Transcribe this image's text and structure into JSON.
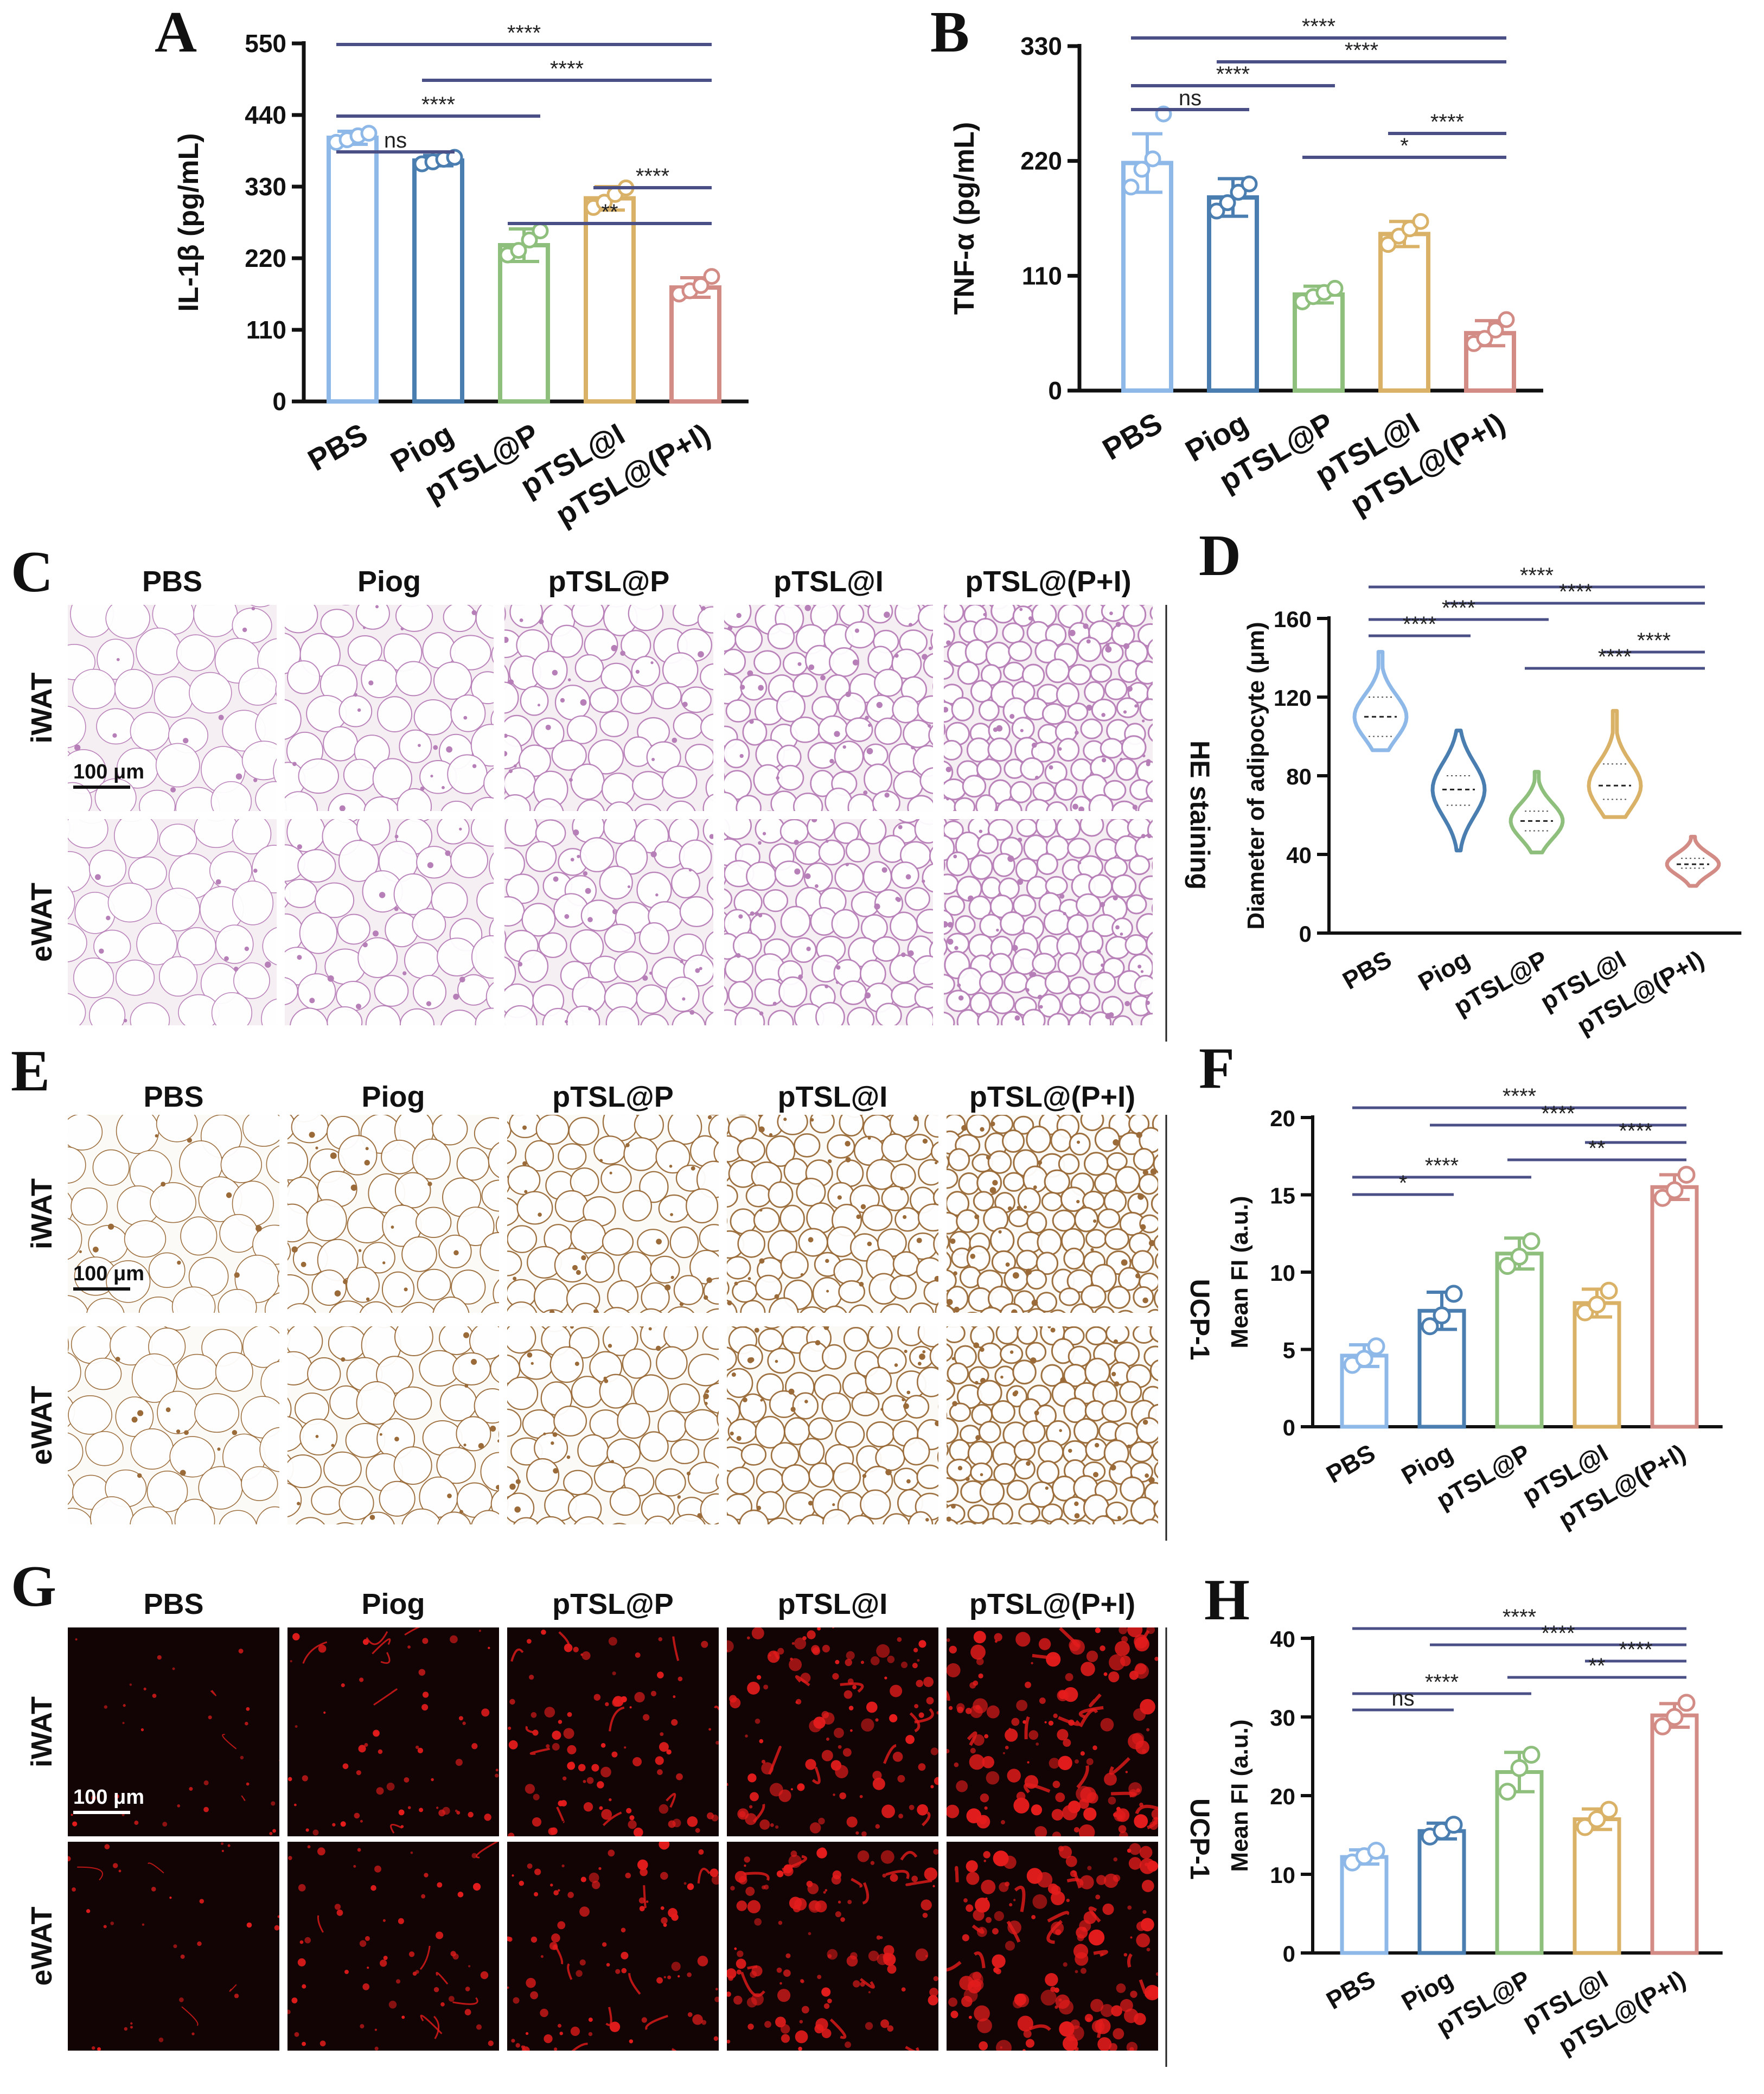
{
  "panel_labels": [
    "A",
    "B",
    "C",
    "D",
    "E",
    "F",
    "G",
    "H"
  ],
  "colors": {
    "PBS": "#8db8e8",
    "Piog": "#4a7eb0",
    "pTSL@P": "#8ebf7c",
    "pTSL@I": "#d9b167",
    "pTSL@(P+I)": "#d38c85",
    "sig_line": "#4a4f86",
    "he_bg": "#f5eef3",
    "he_stain": "#b77fb8",
    "ihc_bg": "#fbfaf7",
    "ihc_stain": "#9a6a38",
    "if_bg": "#120404",
    "if_stain": "#e51c1c"
  },
  "chart_data": [
    {
      "id": "A",
      "type": "bar",
      "categories": [
        "PBS",
        "Piog",
        "pTSL@P",
        "pTSL@I",
        "pTSL@(P+I)"
      ],
      "values": [
        405,
        370,
        240,
        312,
        175
      ],
      "errors": [
        10,
        8,
        25,
        18,
        15
      ],
      "points": [
        [
          398,
          402,
          408,
          412
        ],
        [
          365,
          368,
          372,
          375
        ],
        [
          225,
          232,
          248,
          262
        ],
        [
          298,
          306,
          318,
          328
        ],
        [
          165,
          170,
          178,
          192
        ]
      ],
      "ylabel": "IL-1β (pg/mL)",
      "yticks": [
        "0",
        "110",
        "220",
        "330",
        "440",
        "550"
      ],
      "ylim": [
        0,
        550
      ],
      "significance": [
        {
          "from": 0,
          "to": 4,
          "label": "****"
        },
        {
          "from": 1,
          "to": 4,
          "label": "****"
        },
        {
          "from": 0,
          "to": 2,
          "label": "****"
        },
        {
          "from": 0,
          "to": 1,
          "label": "ns"
        },
        {
          "from": 3,
          "to": 4,
          "label": "****"
        },
        {
          "from": 2,
          "to": 4,
          "label": "**"
        }
      ]
    },
    {
      "id": "B",
      "type": "bar",
      "categories": [
        "PBS",
        "Piog",
        "pTSL@P",
        "pTSL@I",
        "pTSL@(P+I)"
      ],
      "values": [
        218,
        185,
        92,
        150,
        55
      ],
      "errors": [
        28,
        18,
        8,
        12,
        12
      ],
      "points": [
        [
          195,
          212,
          222,
          265
        ],
        [
          172,
          180,
          190,
          198
        ],
        [
          85,
          90,
          94,
          98
        ],
        [
          140,
          148,
          155,
          162
        ],
        [
          45,
          50,
          58,
          68
        ]
      ],
      "ylabel": "TNF-α (pg/mL)",
      "yticks": [
        "0",
        "110",
        "220",
        "330"
      ],
      "ylim": [
        0,
        330
      ],
      "significance": [
        {
          "from": 0,
          "to": 4,
          "label": "****"
        },
        {
          "from": 1,
          "to": 4,
          "label": "****"
        },
        {
          "from": 0,
          "to": 2,
          "label": "****"
        },
        {
          "from": 0,
          "to": 1,
          "label": "ns"
        },
        {
          "from": 3,
          "to": 4,
          "label": "****"
        },
        {
          "from": 2,
          "to": 4,
          "label": "*"
        }
      ]
    },
    {
      "id": "D",
      "type": "violin",
      "categories": [
        "PBS",
        "Piog",
        "pTSL@P",
        "pTSL@I",
        "pTSL@(P+I)"
      ],
      "medians": [
        110,
        73,
        57,
        75,
        35
      ],
      "q1": [
        100,
        65,
        52,
        68,
        33
      ],
      "q3": [
        120,
        80,
        62,
        86,
        38
      ],
      "min": [
        93,
        42,
        41,
        59,
        24
      ],
      "max": [
        143,
        103,
        82,
        113,
        49
      ],
      "ylabel": "Diameter of adipocyte (μm)",
      "yticks": [
        "0",
        "40",
        "80",
        "120",
        "160"
      ],
      "ylim": [
        0,
        160
      ],
      "significance": [
        {
          "from": 0,
          "to": 4,
          "label": "****"
        },
        {
          "from": 1,
          "to": 4,
          "label": "****"
        },
        {
          "from": 0,
          "to": 2,
          "label": "****"
        },
        {
          "from": 0,
          "to": 1,
          "label": "****"
        },
        {
          "from": 3,
          "to": 4,
          "label": "****"
        },
        {
          "from": 2,
          "to": 4,
          "label": "****"
        }
      ]
    },
    {
      "id": "F",
      "type": "bar",
      "categories": [
        "PBS",
        "Piog",
        "pTSL@P",
        "pTSL@I",
        "pTSL@(P+I)"
      ],
      "values": [
        4.6,
        7.5,
        11.2,
        8.0,
        15.5
      ],
      "errors": [
        0.7,
        1.2,
        1.0,
        0.9,
        0.8
      ],
      "points": [
        [
          4.0,
          4.4,
          5.2
        ],
        [
          6.5,
          7.2,
          8.6
        ],
        [
          10.4,
          11.0,
          12.0
        ],
        [
          7.4,
          7.9,
          8.8
        ],
        [
          14.8,
          15.3,
          16.3
        ]
      ],
      "ylabel": "Mean FI (a.u.)",
      "yticks": [
        "0",
        "5",
        "10",
        "15",
        "20"
      ],
      "ylim": [
        0,
        20
      ],
      "significance": [
        {
          "from": 0,
          "to": 4,
          "label": "****"
        },
        {
          "from": 1,
          "to": 4,
          "label": "****"
        },
        {
          "from": 3,
          "to": 4,
          "label": "****"
        },
        {
          "from": 2,
          "to": 4,
          "label": "**"
        },
        {
          "from": 0,
          "to": 2,
          "label": "****"
        },
        {
          "from": 0,
          "to": 1,
          "label": "*"
        }
      ]
    },
    {
      "id": "H",
      "type": "bar",
      "categories": [
        "PBS",
        "Piog",
        "pTSL@P",
        "pTSL@I",
        "pTSL@(P+I)"
      ],
      "values": [
        12.2,
        15.5,
        23.0,
        17.0,
        30.2
      ],
      "errors": [
        0.9,
        1.0,
        2.5,
        1.3,
        1.5
      ],
      "points": [
        [
          11.5,
          12.3,
          13.0
        ],
        [
          14.8,
          15.5,
          16.3
        ],
        [
          20.5,
          23.5,
          25.2
        ],
        [
          16.0,
          17.0,
          18.2
        ],
        [
          28.8,
          30.0,
          31.8
        ]
      ],
      "ylabel": "Mean FI (a.u.)",
      "yticks": [
        "0",
        "10",
        "20",
        "30",
        "40"
      ],
      "ylim": [
        0,
        40
      ],
      "significance": [
        {
          "from": 0,
          "to": 4,
          "label": "****"
        },
        {
          "from": 1,
          "to": 4,
          "label": "****"
        },
        {
          "from": 3,
          "to": 4,
          "label": "****"
        },
        {
          "from": 2,
          "to": 4,
          "label": "**"
        },
        {
          "from": 0,
          "to": 2,
          "label": "****"
        },
        {
          "from": 0,
          "to": 1,
          "label": "ns"
        }
      ]
    }
  ],
  "micrographs": [
    {
      "id": "C",
      "style": "he",
      "columns": [
        "PBS",
        "Piog",
        "pTSL@P",
        "pTSL@I",
        "pTSL@(P+I)"
      ],
      "rows": [
        "iWAT",
        "eWAT"
      ],
      "side_label": "HE staining",
      "scale_bar": "100 μm"
    },
    {
      "id": "E",
      "style": "ihc",
      "columns": [
        "PBS",
        "Piog",
        "pTSL@P",
        "pTSL@I",
        "pTSL@(P+I)"
      ],
      "rows": [
        "iWAT",
        "eWAT"
      ],
      "side_label": "UCP-1",
      "scale_bar": "100 μm"
    },
    {
      "id": "G",
      "style": "if",
      "columns": [
        "PBS",
        "Piog",
        "pTSL@P",
        "pTSL@I",
        "pTSL@(P+I)"
      ],
      "rows": [
        "iWAT",
        "eWAT"
      ],
      "side_label": "UCP-1",
      "scale_bar": "100 μm"
    }
  ]
}
